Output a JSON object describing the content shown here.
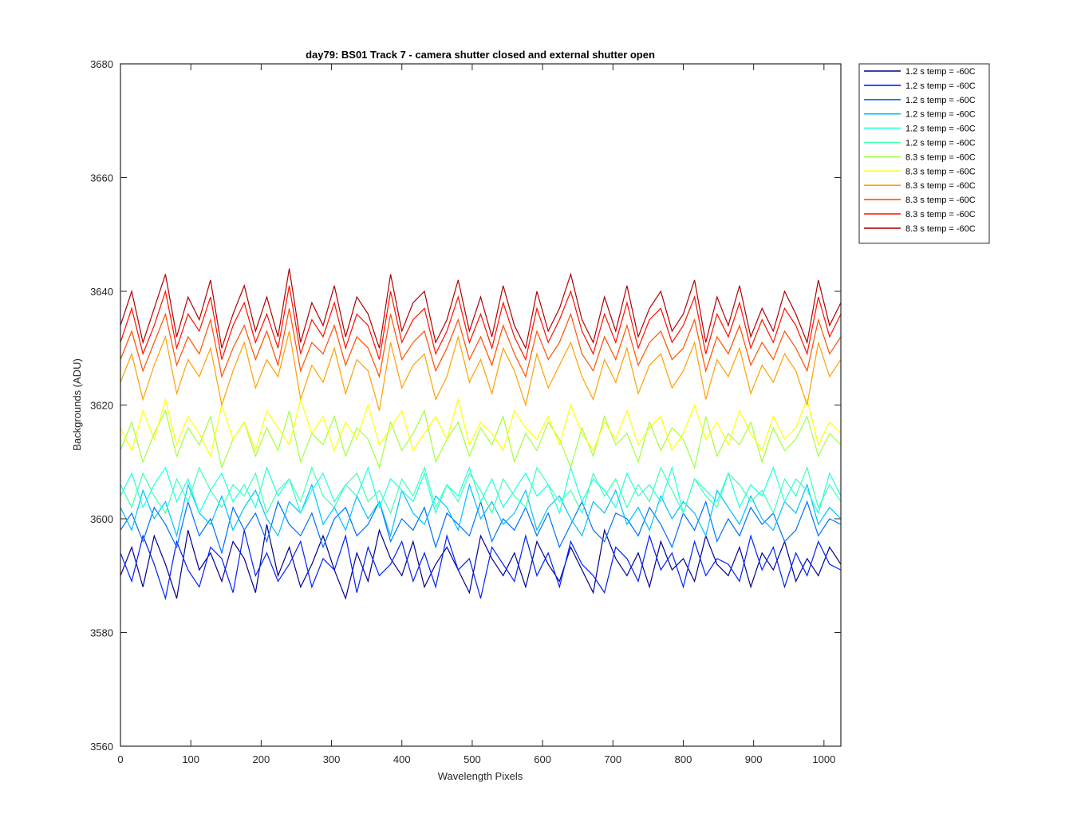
{
  "chart_data": {
    "type": "line",
    "title": "day79: BS01  Track 7 - camera shutter closed and external shutter open",
    "xlabel": "Wavelength Pixels",
    "ylabel": "Backgrounds (ADU)",
    "xlim": [
      0,
      1024
    ],
    "ylim": [
      3560,
      3680
    ],
    "xticks": [
      0,
      100,
      200,
      300,
      400,
      500,
      600,
      700,
      800,
      900,
      1000
    ],
    "yticks": [
      3560,
      3580,
      3600,
      3620,
      3640,
      3660,
      3680
    ],
    "grid": false,
    "legend_position": "outside top-right",
    "sampling_note": "values sampled every 16 wavelength pixels (approximate trace of noisy signal)",
    "x": [
      0,
      16,
      32,
      48,
      64,
      80,
      96,
      112,
      128,
      144,
      160,
      176,
      192,
      208,
      224,
      240,
      256,
      272,
      288,
      304,
      320,
      336,
      352,
      368,
      384,
      400,
      416,
      432,
      448,
      464,
      480,
      496,
      512,
      528,
      544,
      560,
      576,
      592,
      608,
      624,
      640,
      656,
      672,
      688,
      704,
      720,
      736,
      752,
      768,
      784,
      800,
      816,
      832,
      848,
      864,
      880,
      896,
      912,
      928,
      944,
      960,
      976,
      992,
      1008,
      1024
    ],
    "series": [
      {
        "name": "1.2 s temp = -60C",
        "color": "#00008f",
        "values": [
          3590,
          3595,
          3588,
          3597,
          3592,
          3586,
          3598,
          3591,
          3594,
          3589,
          3596,
          3593,
          3587,
          3599,
          3590,
          3595,
          3588,
          3592,
          3597,
          3591,
          3586,
          3594,
          3589,
          3598,
          3593,
          3590,
          3596,
          3588,
          3592,
          3595,
          3591,
          3587,
          3597,
          3593,
          3590,
          3594,
          3588,
          3596,
          3592,
          3589,
          3595,
          3591,
          3587,
          3598,
          3593,
          3590,
          3594,
          3588,
          3596,
          3591,
          3593,
          3589,
          3597,
          3592,
          3590,
          3595,
          3588,
          3594,
          3591,
          3596,
          3589,
          3593,
          3590,
          3595,
          3592
        ]
      },
      {
        "name": "1.2 s temp = -60C",
        "color": "#0020ff",
        "values": [
          3594,
          3589,
          3597,
          3592,
          3586,
          3596,
          3591,
          3588,
          3595,
          3593,
          3587,
          3598,
          3590,
          3594,
          3589,
          3592,
          3596,
          3588,
          3593,
          3591,
          3597,
          3587,
          3595,
          3590,
          3592,
          3596,
          3589,
          3594,
          3588,
          3597,
          3591,
          3593,
          3586,
          3595,
          3592,
          3589,
          3597,
          3590,
          3594,
          3588,
          3596,
          3592,
          3590,
          3587,
          3595,
          3593,
          3589,
          3597,
          3591,
          3594,
          3588,
          3596,
          3590,
          3593,
          3592,
          3589,
          3597,
          3591,
          3595,
          3588,
          3594,
          3590,
          3596,
          3592,
          3591
        ]
      },
      {
        "name": "1.2 s temp = -60C",
        "color": "#0070ff",
        "values": [
          3598,
          3601,
          3596,
          3602,
          3599,
          3595,
          3603,
          3597,
          3600,
          3594,
          3602,
          3598,
          3601,
          3596,
          3603,
          3599,
          3597,
          3601,
          3595,
          3600,
          3602,
          3597,
          3599,
          3603,
          3596,
          3600,
          3598,
          3602,
          3595,
          3601,
          3599,
          3597,
          3603,
          3596,
          3600,
          3598,
          3602,
          3597,
          3601,
          3595,
          3599,
          3603,
          3598,
          3596,
          3601,
          3600,
          3597,
          3602,
          3599,
          3595,
          3601,
          3598,
          3603,
          3596,
          3600,
          3597,
          3602,
          3599,
          3601,
          3596,
          3598,
          3603,
          3597,
          3600,
          3599
        ]
      },
      {
        "name": "1.2 s temp = -60C",
        "color": "#00c0ff",
        "values": [
          3602,
          3598,
          3605,
          3600,
          3603,
          3597,
          3606,
          3601,
          3599,
          3604,
          3598,
          3602,
          3605,
          3600,
          3597,
          3603,
          3601,
          3606,
          3599,
          3602,
          3598,
          3604,
          3600,
          3603,
          3597,
          3605,
          3601,
          3599,
          3604,
          3602,
          3598,
          3606,
          3600,
          3603,
          3599,
          3601,
          3605,
          3598,
          3602,
          3604,
          3600,
          3597,
          3603,
          3601,
          3605,
          3599,
          3602,
          3598,
          3604,
          3600,
          3603,
          3601,
          3597,
          3605,
          3602,
          3599,
          3604,
          3600,
          3598,
          3603,
          3601,
          3606,
          3599,
          3602,
          3600
        ]
      },
      {
        "name": "1.2 s temp = -60C",
        "color": "#20ffe0",
        "values": [
          3604,
          3608,
          3602,
          3606,
          3609,
          3603,
          3607,
          3601,
          3605,
          3608,
          3603,
          3606,
          3602,
          3609,
          3604,
          3607,
          3601,
          3605,
          3608,
          3603,
          3606,
          3604,
          3609,
          3602,
          3607,
          3605,
          3603,
          3608,
          3601,
          3606,
          3604,
          3609,
          3603,
          3607,
          3602,
          3605,
          3608,
          3604,
          3606,
          3601,
          3609,
          3603,
          3607,
          3605,
          3602,
          3608,
          3604,
          3606,
          3603,
          3609,
          3601,
          3607,
          3605,
          3603,
          3608,
          3602,
          3606,
          3604,
          3609,
          3603,
          3607,
          3605,
          3601,
          3608,
          3604
        ]
      },
      {
        "name": "1.2 s temp = -60C",
        "color": "#40ffb0",
        "values": [
          3606,
          3602,
          3608,
          3604,
          3601,
          3607,
          3603,
          3609,
          3605,
          3602,
          3606,
          3604,
          3608,
          3601,
          3605,
          3607,
          3603,
          3609,
          3604,
          3602,
          3606,
          3608,
          3603,
          3605,
          3601,
          3607,
          3604,
          3609,
          3602,
          3606,
          3603,
          3608,
          3605,
          3601,
          3607,
          3604,
          3602,
          3609,
          3606,
          3603,
          3605,
          3601,
          3608,
          3604,
          3607,
          3602,
          3606,
          3603,
          3609,
          3605,
          3601,
          3607,
          3604,
          3602,
          3608,
          3606,
          3603,
          3605,
          3601,
          3607,
          3604,
          3609,
          3602,
          3606,
          3603
        ]
      },
      {
        "name": "8.3 s temp = -60C",
        "color": "#a0ff40",
        "values": [
          3612,
          3617,
          3610,
          3615,
          3619,
          3611,
          3616,
          3613,
          3618,
          3609,
          3614,
          3617,
          3611,
          3616,
          3612,
          3619,
          3610,
          3615,
          3613,
          3618,
          3611,
          3616,
          3614,
          3609,
          3617,
          3612,
          3615,
          3619,
          3610,
          3614,
          3617,
          3611,
          3616,
          3613,
          3618,
          3610,
          3615,
          3612,
          3617,
          3614,
          3609,
          3616,
          3611,
          3618,
          3613,
          3615,
          3610,
          3617,
          3612,
          3616,
          3614,
          3609,
          3618,
          3611,
          3615,
          3613,
          3617,
          3610,
          3616,
          3612,
          3614,
          3618,
          3611,
          3615,
          3613
        ]
      },
      {
        "name": "8.3 s temp = -60C",
        "color": "#ffff00",
        "values": [
          3616,
          3612,
          3619,
          3614,
          3621,
          3613,
          3618,
          3615,
          3611,
          3620,
          3614,
          3617,
          3612,
          3619,
          3616,
          3613,
          3621,
          3615,
          3618,
          3612,
          3617,
          3614,
          3620,
          3613,
          3616,
          3619,
          3612,
          3615,
          3618,
          3614,
          3621,
          3613,
          3617,
          3615,
          3612,
          3619,
          3616,
          3614,
          3618,
          3613,
          3620,
          3615,
          3612,
          3617,
          3614,
          3619,
          3613,
          3616,
          3618,
          3612,
          3615,
          3620,
          3614,
          3617,
          3613,
          3619,
          3615,
          3612,
          3618,
          3614,
          3616,
          3621,
          3613,
          3617,
          3615
        ]
      },
      {
        "name": "8.3 s temp = -60C",
        "color": "#ffa000",
        "values": [
          3624,
          3629,
          3621,
          3627,
          3632,
          3622,
          3628,
          3625,
          3630,
          3620,
          3626,
          3631,
          3623,
          3628,
          3625,
          3633,
          3621,
          3627,
          3624,
          3630,
          3622,
          3628,
          3626,
          3619,
          3631,
          3623,
          3627,
          3629,
          3621,
          3625,
          3632,
          3624,
          3628,
          3622,
          3630,
          3626,
          3620,
          3629,
          3623,
          3627,
          3631,
          3625,
          3621,
          3628,
          3624,
          3630,
          3622,
          3627,
          3629,
          3623,
          3626,
          3631,
          3621,
          3628,
          3625,
          3630,
          3622,
          3627,
          3624,
          3629,
          3626,
          3620,
          3631,
          3625,
          3628
        ]
      },
      {
        "name": "8.3 s temp = -60C",
        "color": "#ff5000",
        "values": [
          3628,
          3633,
          3626,
          3631,
          3636,
          3627,
          3632,
          3629,
          3635,
          3625,
          3630,
          3634,
          3628,
          3633,
          3627,
          3637,
          3626,
          3631,
          3629,
          3634,
          3627,
          3632,
          3630,
          3625,
          3636,
          3628,
          3631,
          3633,
          3626,
          3630,
          3635,
          3628,
          3632,
          3627,
          3634,
          3629,
          3625,
          3633,
          3628,
          3631,
          3636,
          3629,
          3626,
          3632,
          3628,
          3634,
          3627,
          3631,
          3633,
          3628,
          3630,
          3635,
          3626,
          3632,
          3629,
          3634,
          3627,
          3631,
          3628,
          3633,
          3630,
          3626,
          3635,
          3629,
          3632
        ]
      },
      {
        "name": "8.3 s temp = -60C",
        "color": "#ff1000",
        "values": [
          3631,
          3637,
          3629,
          3634,
          3640,
          3630,
          3636,
          3633,
          3639,
          3628,
          3634,
          3638,
          3631,
          3636,
          3630,
          3641,
          3629,
          3635,
          3632,
          3638,
          3630,
          3636,
          3634,
          3628,
          3640,
          3631,
          3635,
          3637,
          3629,
          3633,
          3639,
          3631,
          3636,
          3630,
          3638,
          3632,
          3628,
          3637,
          3631,
          3635,
          3640,
          3633,
          3629,
          3636,
          3631,
          3638,
          3630,
          3635,
          3637,
          3631,
          3634,
          3639,
          3629,
          3636,
          3632,
          3638,
          3630,
          3635,
          3631,
          3637,
          3634,
          3629,
          3639,
          3632,
          3636
        ]
      },
      {
        "name": "8.3 s temp = -60C",
        "color": "#b00000",
        "values": [
          3634,
          3640,
          3631,
          3637,
          3643,
          3632,
          3639,
          3635,
          3642,
          3630,
          3636,
          3641,
          3633,
          3639,
          3632,
          3644,
          3631,
          3638,
          3634,
          3641,
          3632,
          3639,
          3636,
          3630,
          3643,
          3633,
          3638,
          3640,
          3631,
          3635,
          3642,
          3633,
          3639,
          3632,
          3641,
          3634,
          3630,
          3640,
          3633,
          3637,
          3643,
          3635,
          3631,
          3639,
          3633,
          3641,
          3632,
          3637,
          3640,
          3633,
          3636,
          3642,
          3631,
          3639,
          3634,
          3641,
          3632,
          3637,
          3633,
          3640,
          3636,
          3631,
          3642,
          3634,
          3638
        ]
      }
    ]
  }
}
